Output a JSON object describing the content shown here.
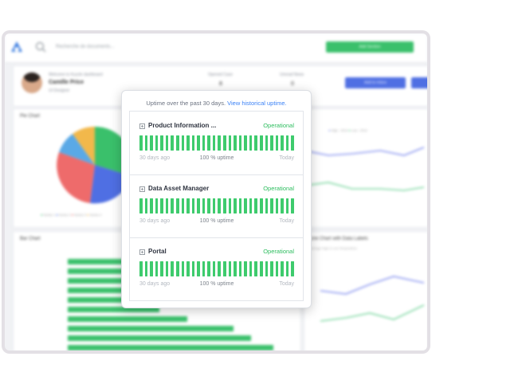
{
  "dashboard": {
    "search_placeholder": "Recherche de documents...",
    "cta_label": "Add Section",
    "profile": {
      "welcome": "Welcome to Kuzzle dashboard",
      "name": "Camille Price",
      "role": "UI Designer",
      "stats": [
        {
          "label": "Opened Case",
          "value": "8"
        },
        {
          "label": "Unread News",
          "value": "0"
        }
      ],
      "button_label": "Add to Inbox"
    },
    "pie_chart": {
      "title": "Pie Chart",
      "legend": [
        "Series 1",
        "Series 2",
        "Series 3",
        "Series 4"
      ],
      "colors": [
        "#3ac06b",
        "#4f6fe3",
        "#ee6b6b",
        "#f2b84b",
        "#5aa9e6"
      ]
    },
    "line_chart": {
      "legend": [
        "High - 2013",
        "Low - 2013"
      ]
    },
    "bar_chart": {
      "title": "Bar Chart"
    },
    "line_chart_2": {
      "title": "Line Chart with Data Labels",
      "subtitle": "Average High & Low Temperature"
    }
  },
  "popup": {
    "intro": "Uptime over the past 30 days.",
    "link": "View historical uptime.",
    "services": [
      {
        "name": "Product Information ...",
        "status": "Operational",
        "days": 30,
        "uptime_percent": 100
      },
      {
        "name": "Data Asset Manager",
        "status": "Operational",
        "days": 30,
        "uptime_percent": 100
      },
      {
        "name": "Portal",
        "status": "Operational",
        "days": 30,
        "uptime_percent": 100
      }
    ],
    "footer": {
      "start": "30 days ago",
      "middle": "100 % uptime",
      "end": "Today"
    },
    "colors": {
      "operational": "#2ebd5f",
      "bar": "#3ecb6d",
      "link": "#3b82f6"
    }
  }
}
